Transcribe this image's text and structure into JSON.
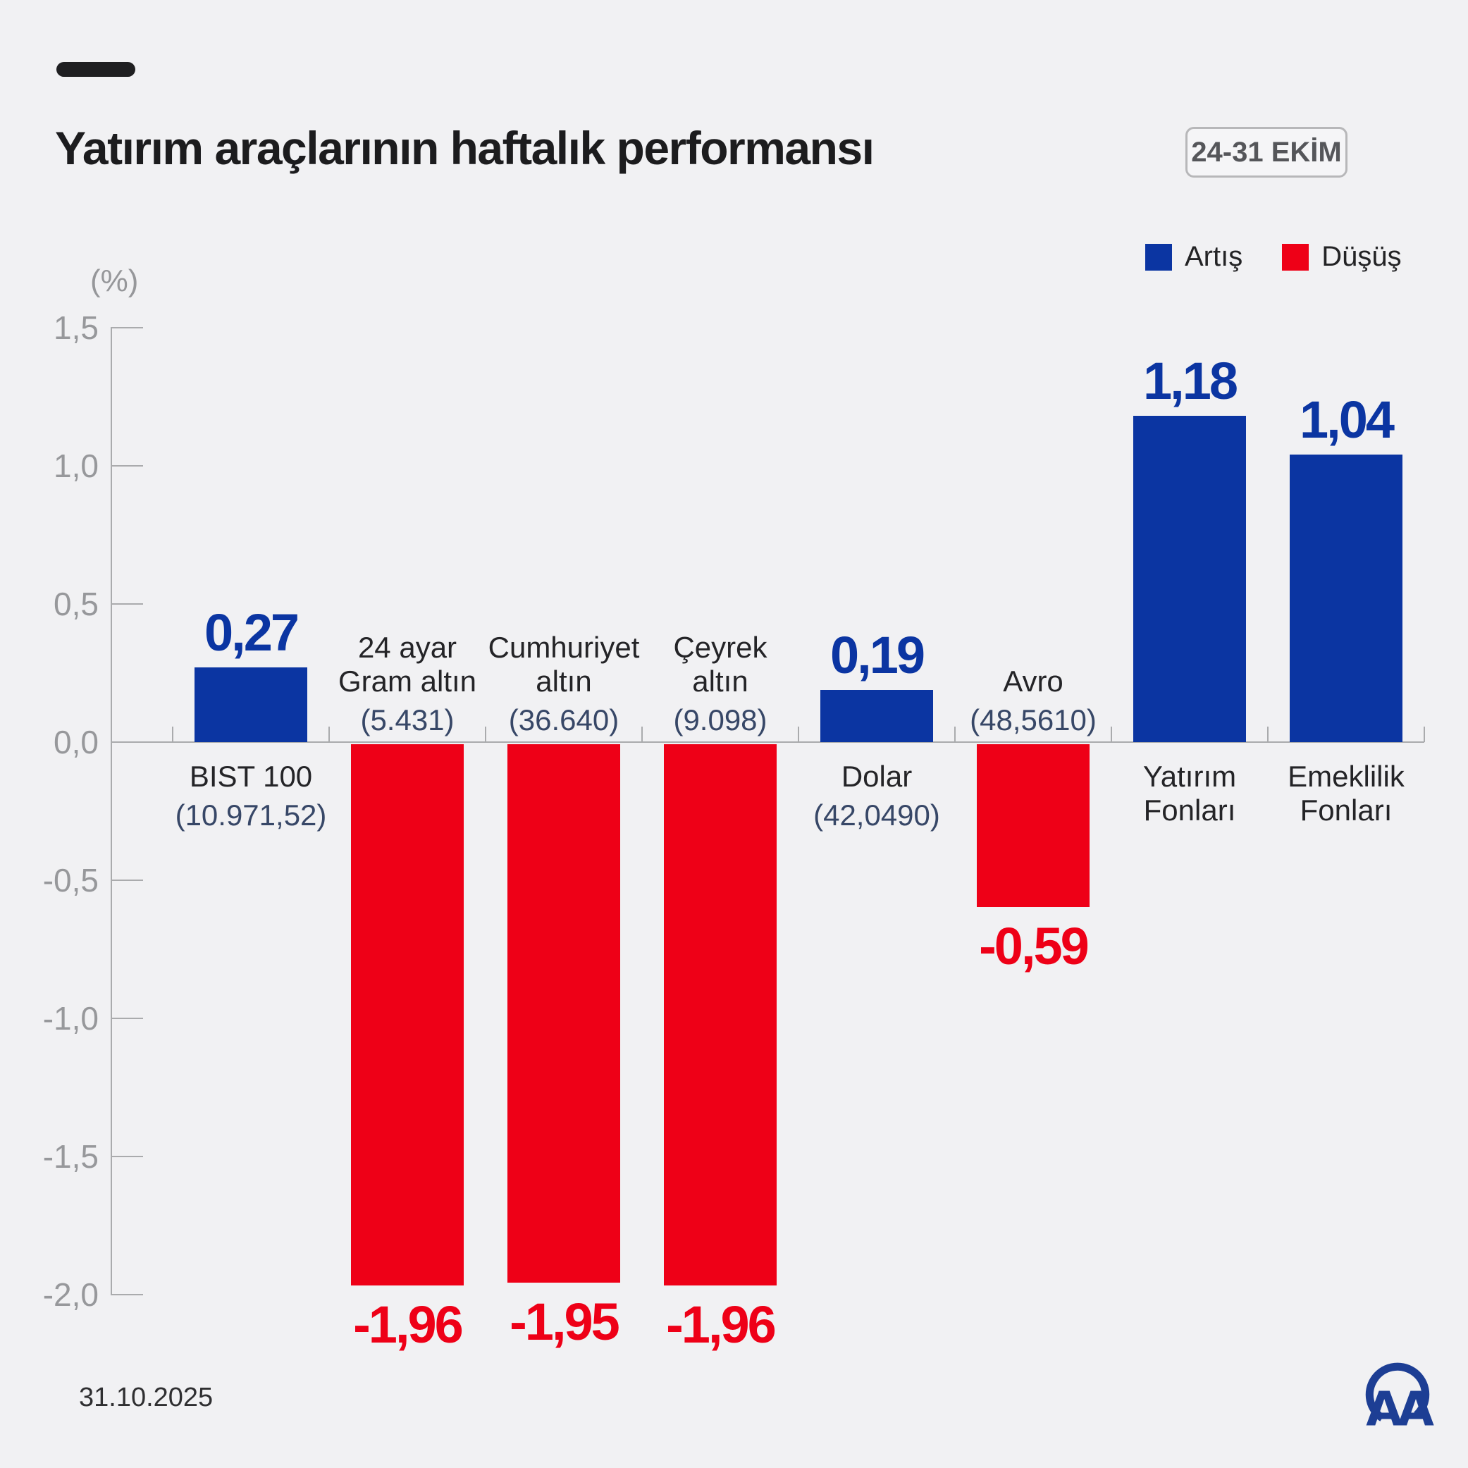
{
  "title": "Yatırım araçlarının haftalık performansı",
  "date_badge": "24-31 EKİM",
  "footer_date": "31.10.2025",
  "legend": {
    "up_label": "Artış",
    "down_label": "Düşüş"
  },
  "colors": {
    "up": "#0b35a2",
    "down": "#ee0017",
    "sub_label": "#374767",
    "axis": "#aaabad",
    "background": "#f1f1f3",
    "logo_blue": "#1d3e94"
  },
  "chart_data": {
    "type": "bar",
    "title": "Yatırım araçlarının haftalık performansı",
    "unit_label": "(%)",
    "xlabel": "",
    "ylabel": "(%)",
    "ylim": [
      -2.0,
      1.5
    ],
    "ytick_step": 0.5,
    "yticks": [
      "1,5",
      "1,0",
      "0,5",
      "0,0",
      "-0,5",
      "-1,0",
      "-1,5",
      "-2,0"
    ],
    "grid": false,
    "legend_position": "top-right",
    "legend_entries": [
      "Artış",
      "Düşüş"
    ],
    "categories": [
      "BIST 100",
      "24 ayar Gram altın",
      "Cumhuriyet altın",
      "Çeyrek altın",
      "Dolar",
      "Avro",
      "Yatırım Fonları",
      "Emeklilik Fonları"
    ],
    "values": [
      0.27,
      -1.96,
      -1.95,
      -1.96,
      0.19,
      -0.59,
      1.18,
      1.04
    ],
    "bars": [
      {
        "name_lines": [
          "BIST 100"
        ],
        "sub_value": "(10.971,52)",
        "value": 0.27,
        "display": "0,27",
        "direction": "up"
      },
      {
        "name_lines": [
          "24 ayar",
          "Gram altın"
        ],
        "sub_value": "(5.431)",
        "value": -1.96,
        "display": "-1,96",
        "direction": "down"
      },
      {
        "name_lines": [
          "Cumhuriyet",
          "altın"
        ],
        "sub_value": "(36.640)",
        "value": -1.95,
        "display": "-1,95",
        "direction": "down"
      },
      {
        "name_lines": [
          "Çeyrek",
          "altın"
        ],
        "sub_value": "(9.098)",
        "value": -1.96,
        "display": "-1,96",
        "direction": "down"
      },
      {
        "name_lines": [
          "Dolar"
        ],
        "sub_value": "(42,0490)",
        "value": 0.19,
        "display": "0,19",
        "direction": "up"
      },
      {
        "name_lines": [
          "Avro"
        ],
        "sub_value": "(48,5610)",
        "value": -0.59,
        "display": "-0,59",
        "direction": "down"
      },
      {
        "name_lines": [
          "Yatırım",
          "Fonları"
        ],
        "sub_value": "",
        "value": 1.18,
        "display": "1,18",
        "direction": "up"
      },
      {
        "name_lines": [
          "Emeklilik",
          "Fonları"
        ],
        "sub_value": "",
        "value": 1.04,
        "display": "1,04",
        "direction": "up"
      }
    ]
  }
}
